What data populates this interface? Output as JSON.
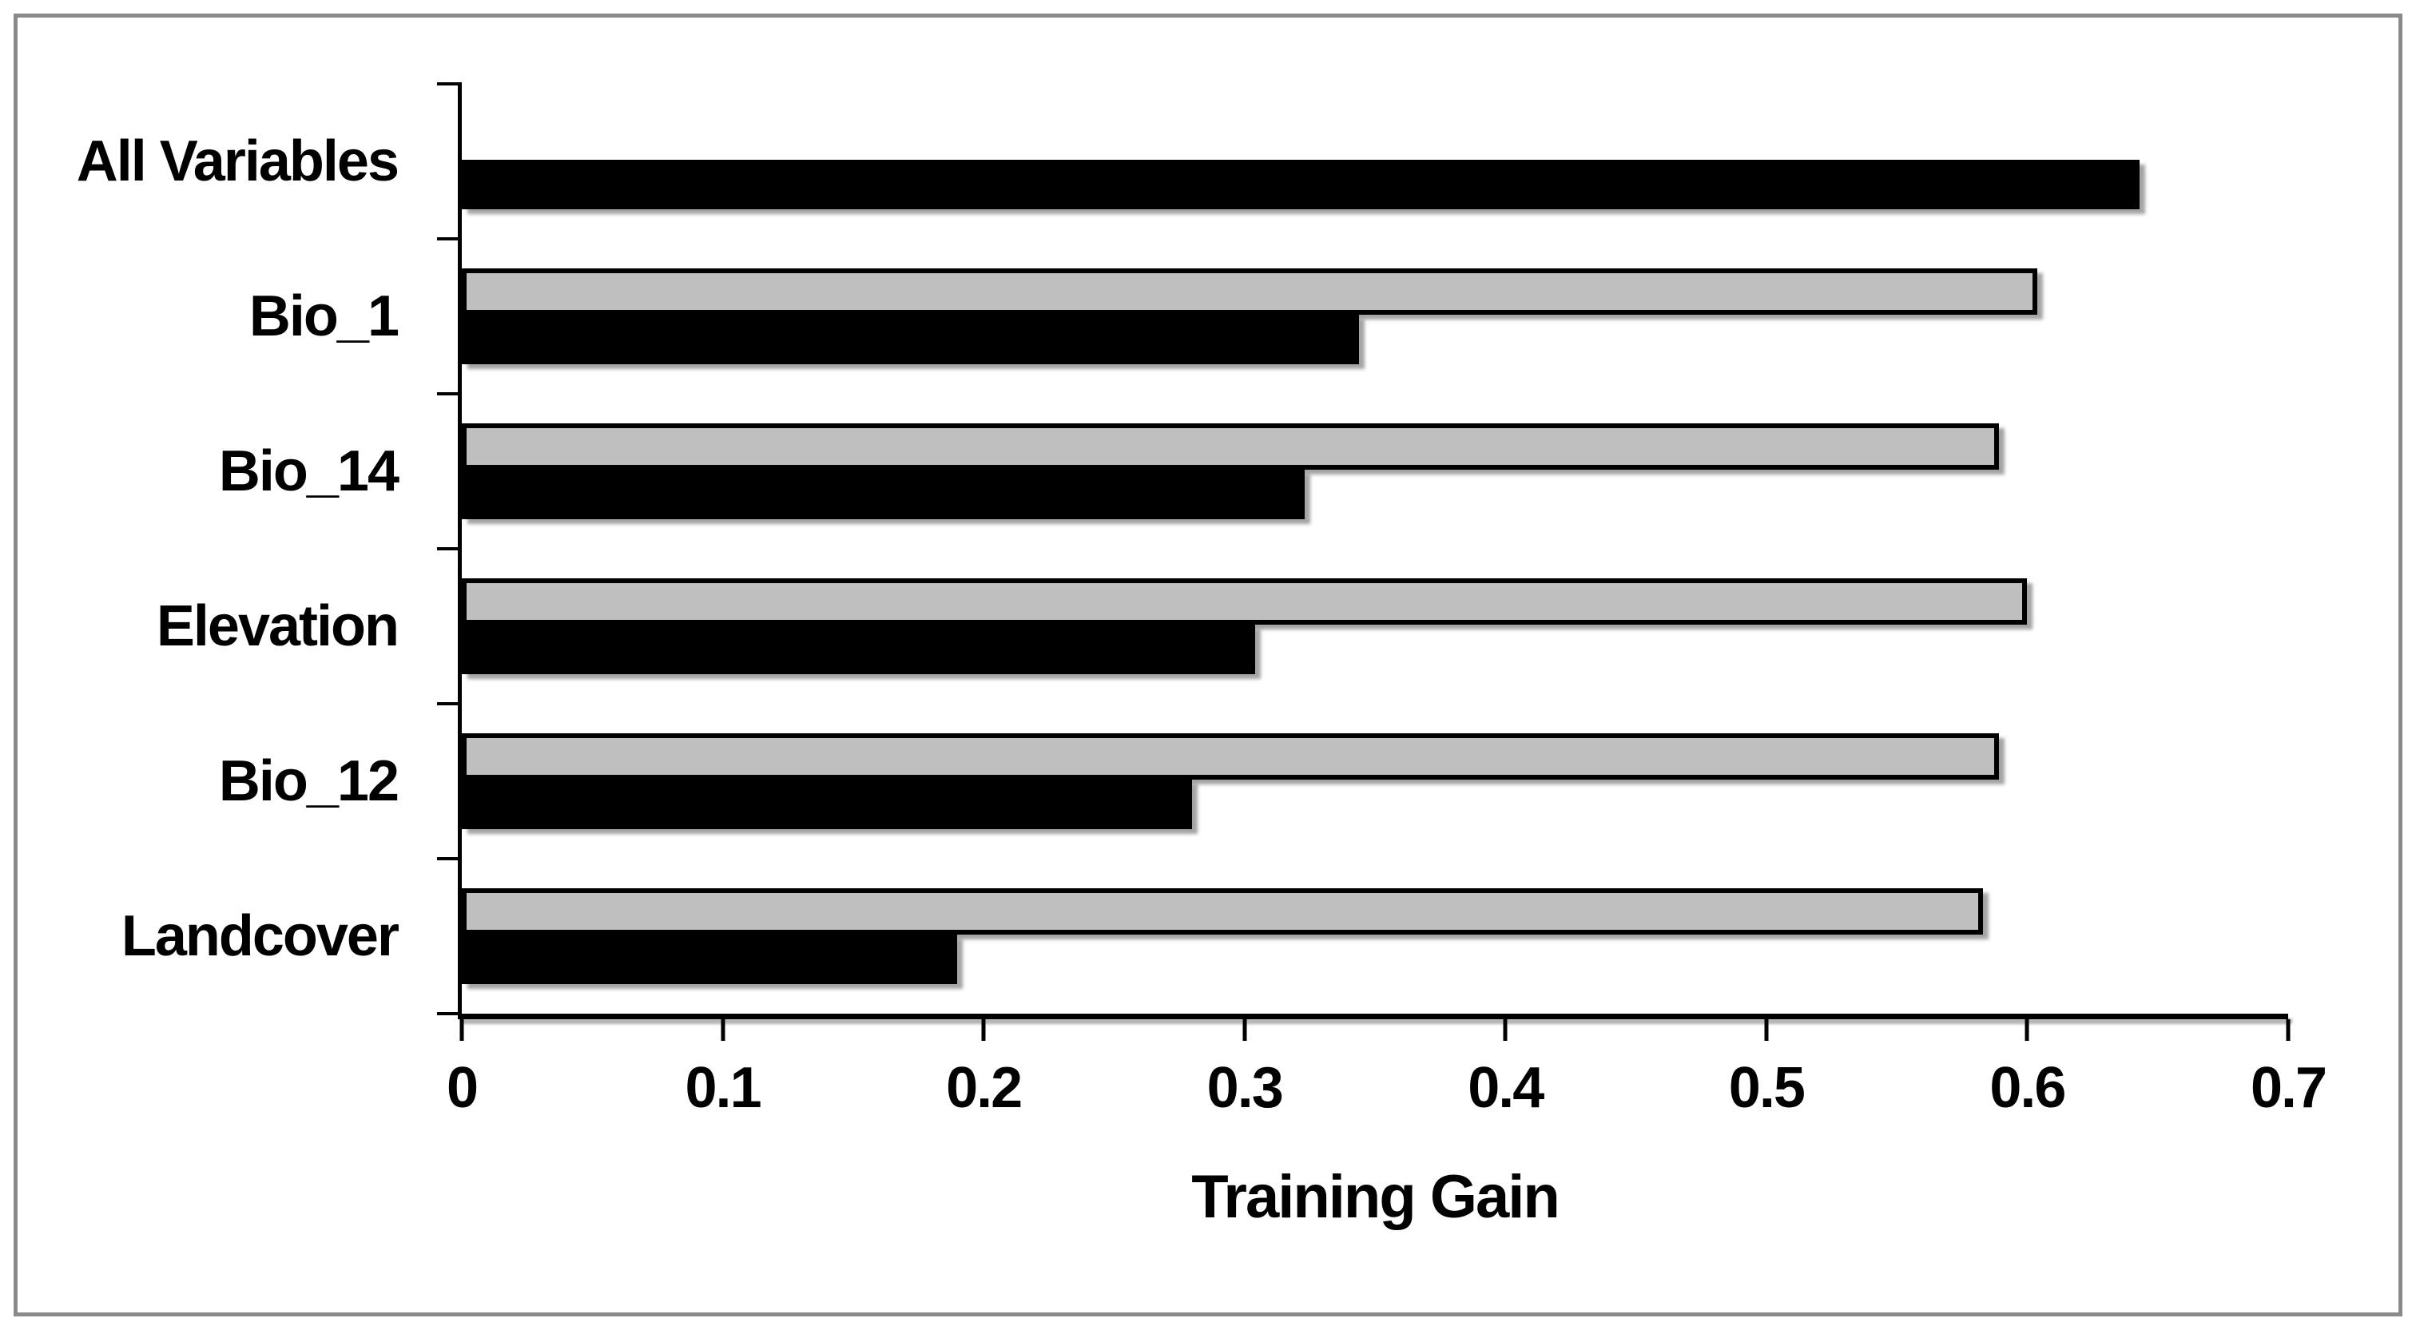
{
  "chart_data": {
    "type": "bar",
    "orientation": "horizontal",
    "title": "",
    "xlabel": "Training Gain",
    "ylabel": "",
    "categories": [
      "All Variables",
      "Bio_1",
      "Bio_14",
      "Elevation",
      "Bio_12",
      "Landcover"
    ],
    "series": [
      {
        "name": "gray",
        "color": "#bfbfbf",
        "values": [
          null,
          0.604,
          0.589,
          0.6,
          0.589,
          0.583
        ]
      },
      {
        "name": "black",
        "color": "#000000",
        "values": [
          0.643,
          0.344,
          0.323,
          0.304,
          0.28,
          0.19
        ]
      }
    ],
    "xlim": [
      0,
      0.7
    ],
    "xticks": [
      0,
      0.1,
      0.2,
      0.3,
      0.4,
      0.5,
      0.6,
      0.7
    ],
    "xtick_labels": [
      "0",
      "0.1",
      "0.2",
      "0.3",
      "0.4",
      "0.5",
      "0.6",
      "0.7"
    ],
    "grid": false,
    "legend": false
  },
  "style": {
    "frame_color": "#8a8a8a",
    "axis_color": "#000000",
    "background": "#ffffff"
  }
}
